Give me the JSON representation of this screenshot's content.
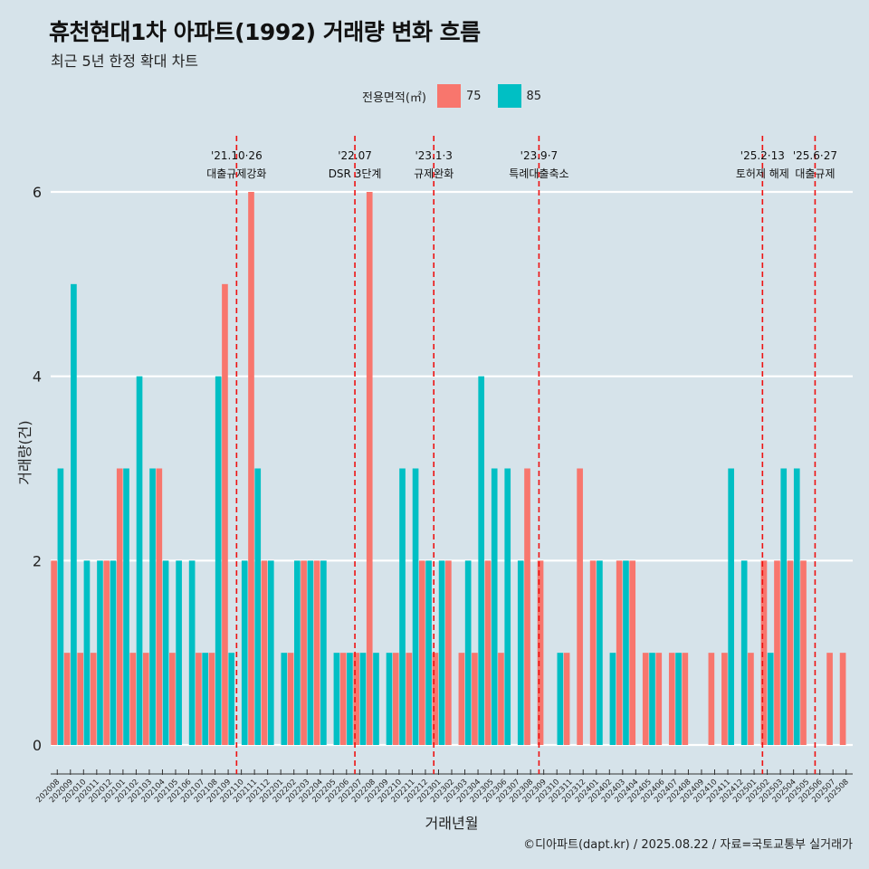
{
  "header": {
    "title": "휴천현대1차 아파트(1992) 거래량 변화 흐름",
    "subtitle": "최근 5년 한정 확대 차트"
  },
  "legend": {
    "title": "전용면적(㎡)",
    "items": [
      {
        "label": "75",
        "color": "#f8766d"
      },
      {
        "label": "85",
        "color": "#00bfc4"
      }
    ]
  },
  "caption": "©디아파트(dapt.kr) / 2025.08.22 / 자료=국토교통부 실거래가",
  "chart_data": {
    "type": "bar",
    "title": "휴천현대1차 아파트(1992) 거래량 변화 흐름",
    "xlabel": "거래년월",
    "ylabel": "거래량(건)",
    "ylim": [
      0,
      6
    ],
    "yticks": [
      0,
      2,
      4,
      6
    ],
    "categories": [
      "202008",
      "202009",
      "202010",
      "202011",
      "202012",
      "202101",
      "202102",
      "202103",
      "202104",
      "202105",
      "202106",
      "202107",
      "202108",
      "202109",
      "202110",
      "202111",
      "202112",
      "202201",
      "202202",
      "202203",
      "202204",
      "202205",
      "202206",
      "202207",
      "202208",
      "202209",
      "202210",
      "202211",
      "202212",
      "202301",
      "202302",
      "202303",
      "202304",
      "202305",
      "202306",
      "202307",
      "202308",
      "202309",
      "202310",
      "202311",
      "202312",
      "202401",
      "202402",
      "202403",
      "202404",
      "202405",
      "202406",
      "202407",
      "202408",
      "202409",
      "202410",
      "202411",
      "202412",
      "202501",
      "202502",
      "202503",
      "202504",
      "202505",
      "202506",
      "202507",
      "202508"
    ],
    "series": [
      {
        "name": "75",
        "color": "#f8766d",
        "values": [
          2,
          1,
          1,
          1,
          2,
          3,
          1,
          1,
          3,
          1,
          0,
          1,
          1,
          5,
          0,
          6,
          2,
          0,
          1,
          2,
          2,
          0,
          1,
          1,
          6,
          0,
          1,
          1,
          2,
          1,
          2,
          1,
          1,
          2,
          1,
          0,
          3,
          2,
          0,
          1,
          3,
          2,
          0,
          2,
          2,
          1,
          1,
          1,
          1,
          0,
          1,
          1,
          0,
          1,
          2,
          2,
          2,
          2,
          0,
          1,
          1
        ]
      },
      {
        "name": "85",
        "color": "#00bfc4",
        "values": [
          3,
          5,
          2,
          2,
          2,
          3,
          4,
          3,
          2,
          2,
          2,
          1,
          4,
          1,
          2,
          3,
          2,
          1,
          2,
          2,
          2,
          1,
          1,
          1,
          1,
          1,
          3,
          3,
          2,
          2,
          0,
          2,
          4,
          3,
          3,
          2,
          0,
          0,
          1,
          0,
          0,
          2,
          1,
          2,
          0,
          1,
          0,
          1,
          0,
          0,
          0,
          3,
          2,
          0,
          1,
          3,
          3,
          0,
          0,
          0,
          0
        ]
      }
    ],
    "events": [
      {
        "month": "202110",
        "date": "'21.10·26",
        "label": "대출규제강화"
      },
      {
        "month": "202207",
        "date": "'22.07",
        "label": "DSR 3단계"
      },
      {
        "month": "202301",
        "date": "'23.1·3",
        "label": "규제완화"
      },
      {
        "month": "202309",
        "date": "'23.9·7",
        "label": "특례대출축소"
      },
      {
        "month": "202502",
        "date": "'25.2·13",
        "label": "토허제 해제"
      },
      {
        "month": "202506",
        "date": "'25.6·27",
        "label": "대출규제"
      }
    ]
  }
}
